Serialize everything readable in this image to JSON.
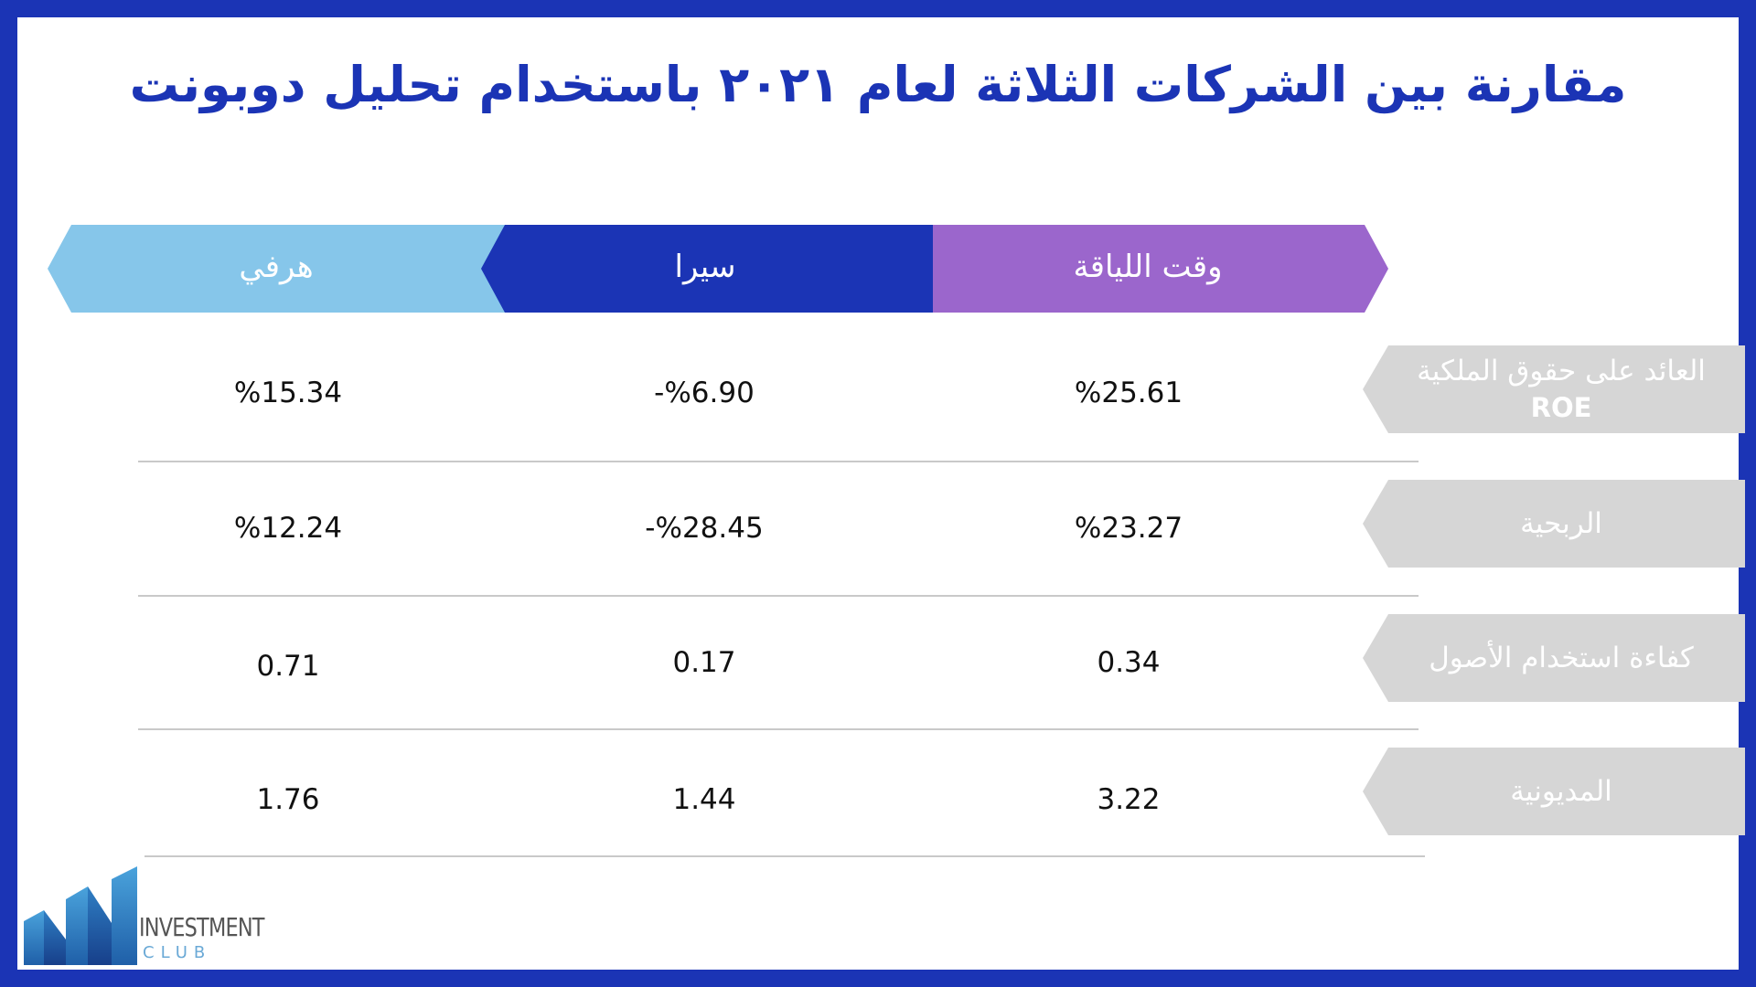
{
  "title": "مقارنة بين الشركات الثلاثة لعام ٢٠٢١ باستخدام تحليل دوبونت",
  "columns": [
    {
      "label": "وقت اللياقة",
      "color": "#9b66cc"
    },
    {
      "label": "سيرا",
      "color": "#1b34b5"
    },
    {
      "label": "هرفي",
      "color": "#86c6ea"
    }
  ],
  "rows": [
    {
      "label": "العائد على حقوق الملكية",
      "sublabel": "ROE",
      "values": [
        "%25.61",
        "-%6.90",
        "%15.34"
      ]
    },
    {
      "label": "الربحية",
      "values": [
        "%23.27",
        "-%28.45",
        "%12.24"
      ]
    },
    {
      "label": "كفاءة استخدام الأصول",
      "values": [
        "0.34",
        "0.17",
        "0.71"
      ]
    },
    {
      "label": "المديونية",
      "values": [
        "3.22",
        "1.44",
        "1.76"
      ]
    }
  ],
  "logo": {
    "word": "INVESTMENT",
    "sub": "CLUB"
  },
  "colors": {
    "frame": "#1b34b5",
    "label_bg": "#d6d6d6",
    "divider": "#c9c9c9"
  }
}
